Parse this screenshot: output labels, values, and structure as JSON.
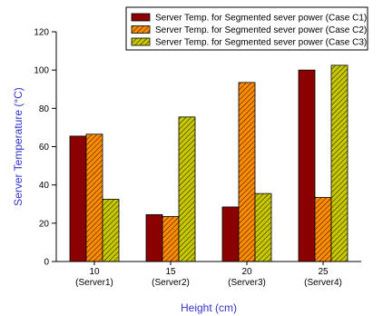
{
  "chart_data": {
    "type": "bar",
    "title": "",
    "xlabel": "Height (cm)",
    "ylabel": "Server Temperature (°C)",
    "ylim": [
      0,
      120
    ],
    "yticks": [
      0,
      20,
      40,
      60,
      80,
      100,
      120
    ],
    "categories": [
      "10",
      "15",
      "20",
      "25"
    ],
    "category_sublabels": [
      "(Server1)",
      "(Server2)",
      "(Server3)",
      "(Server4)"
    ],
    "series": [
      {
        "name": "Server Temp. for Segmented sever power (Case C1)",
        "values": [
          65.5,
          24.5,
          28.5,
          100
        ],
        "color": "#8B0000",
        "pattern": "solid"
      },
      {
        "name": "Server Temp. for Segmented sever power (Case C2)",
        "values": [
          66.5,
          23.5,
          93.5,
          33.5
        ],
        "color": "#FF8C00",
        "pattern": "hatch"
      },
      {
        "name": "Server Temp. for Segmented sever power (Case C3)",
        "values": [
          32.5,
          75.5,
          35.5,
          102.5
        ],
        "color": "#C8C800",
        "pattern": "hatch"
      }
    ],
    "legend_position": "top-right",
    "grid": false,
    "axis_label_color": "#3333CC"
  }
}
